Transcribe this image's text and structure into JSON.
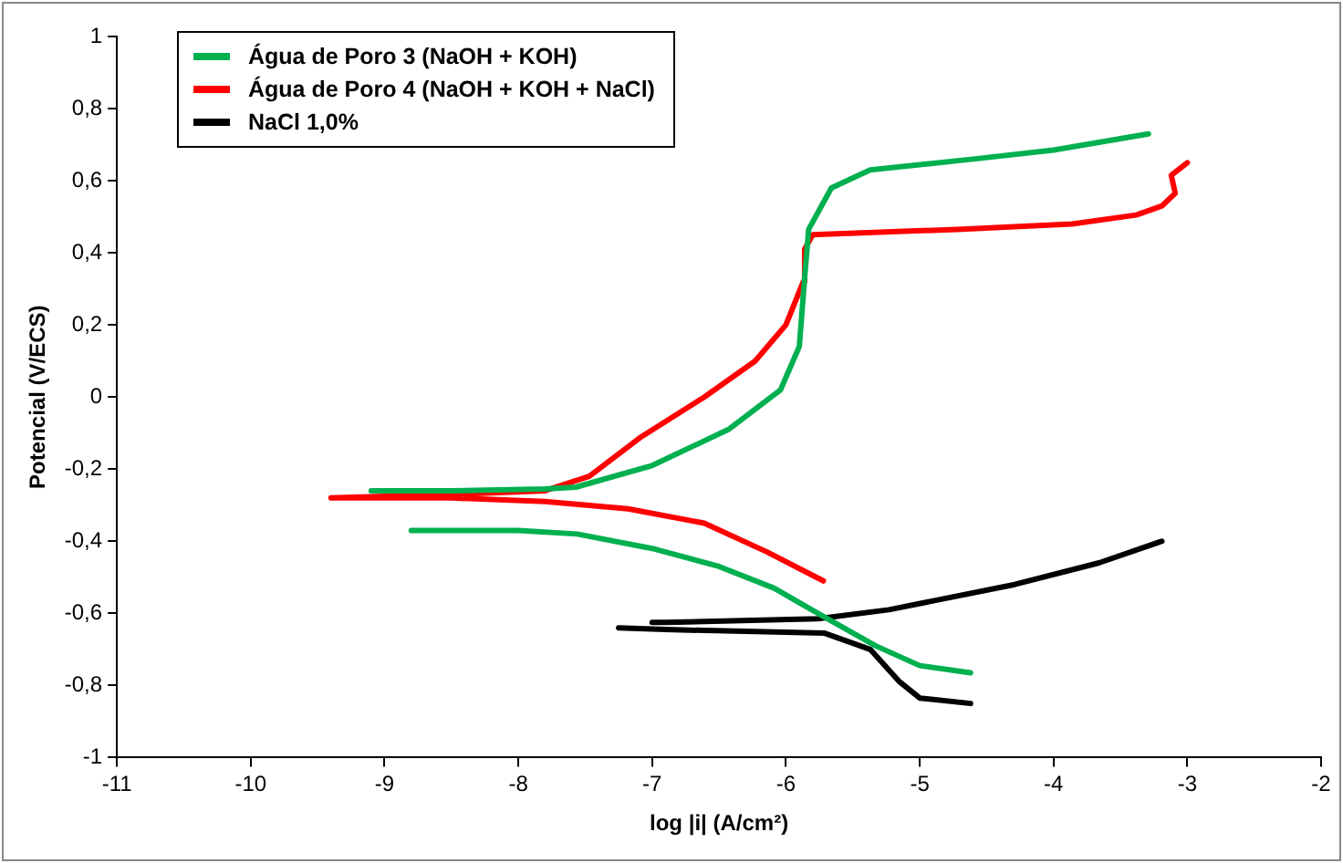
{
  "chart_data": {
    "type": "line",
    "xlabel": "log |i| (A/cm²)",
    "ylabel": "Potencial (V/ECS)",
    "xlim": [
      -11,
      -2
    ],
    "xticks": [
      -11,
      -10,
      -9,
      -8,
      -7,
      -6,
      -5,
      -4,
      -3,
      -2
    ],
    "ylim": [
      -1,
      1
    ],
    "yticks": [
      {
        "value": -1,
        "label": "-1"
      },
      {
        "value": -0.8,
        "label": "-0,8"
      },
      {
        "value": -0.6,
        "label": "-0,6"
      },
      {
        "value": -0.4,
        "label": "-0,4"
      },
      {
        "value": -0.2,
        "label": "-0,2"
      },
      {
        "value": 0,
        "label": "0"
      },
      {
        "value": 0.2,
        "label": "0,2"
      },
      {
        "value": 0.4,
        "label": "0,4"
      },
      {
        "value": 0.6,
        "label": "0,6"
      },
      {
        "value": 0.8,
        "label": "0,8"
      },
      {
        "value": 1,
        "label": "1"
      }
    ],
    "grid": false,
    "legend": "top left",
    "marker": "none",
    "line_style": "solid",
    "series": [
      {
        "name": "Água de Poro 3 (NaOH + KOH)",
        "color": "#00b050",
        "x": [
          -4.62,
          -5.0,
          -5.33,
          -5.76,
          -6.09,
          -6.5,
          -7.0,
          -7.56,
          -8.0,
          -8.8,
          null,
          -9.1,
          -8.5,
          -7.8,
          -7.57,
          -7.0,
          -6.43,
          -6.04,
          -5.9,
          -5.86,
          -5.83,
          -5.66,
          -5.37,
          -4.6,
          -4.0,
          -3.29
        ],
        "values": [
          -0.765,
          -0.745,
          -0.69,
          -0.6,
          -0.53,
          -0.47,
          -0.42,
          -0.38,
          -0.37,
          -0.37,
          null,
          -0.26,
          -0.26,
          -0.255,
          -0.25,
          -0.19,
          -0.09,
          0.02,
          0.14,
          0.33,
          0.465,
          0.58,
          0.63,
          0.66,
          0.685,
          0.73
        ]
      },
      {
        "name": "Água de Poro 4 (NaOH + KOH + NaCl)",
        "color": "#ff0000",
        "x": [
          -5.72,
          -6.14,
          -6.61,
          -7.18,
          -7.8,
          -8.5,
          -9.4,
          -8.5,
          -7.8,
          -7.47,
          -7.08,
          -6.61,
          -6.23,
          -6.0,
          -5.87,
          -5.86,
          -5.8,
          -4.72,
          -3.86,
          -3.38,
          -3.19,
          -3.09,
          -3.12,
          -3.0
        ],
        "values": [
          -0.51,
          -0.43,
          -0.35,
          -0.31,
          -0.29,
          -0.28,
          -0.28,
          -0.27,
          -0.26,
          -0.22,
          -0.11,
          0.0,
          0.1,
          0.2,
          0.32,
          0.41,
          0.45,
          0.465,
          0.48,
          0.505,
          0.53,
          0.565,
          0.615,
          0.65
        ]
      },
      {
        "name": "NaCl 1,0%",
        "color": "#000000",
        "x": [
          -4.62,
          -5.0,
          -5.15,
          -5.37,
          -5.71,
          -6.9,
          -7.25,
          null,
          -7.0,
          -6.9,
          -5.76,
          -5.23,
          -4.29,
          -3.66,
          -3.19
        ],
        "values": [
          -0.85,
          -0.835,
          -0.79,
          -0.7,
          -0.655,
          -0.645,
          -0.64,
          null,
          -0.625,
          -0.625,
          -0.615,
          -0.59,
          -0.52,
          -0.46,
          -0.4
        ]
      }
    ]
  }
}
